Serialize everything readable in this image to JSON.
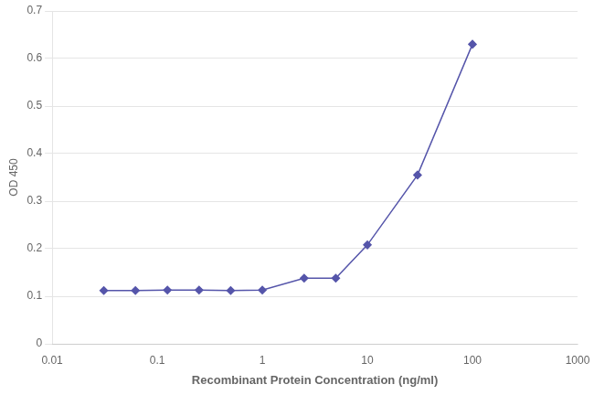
{
  "chart_data": {
    "type": "line",
    "x": [
      0.031,
      0.062,
      0.125,
      0.25,
      0.5,
      1.0,
      2.5,
      5.0,
      10.0,
      30.0,
      100.0
    ],
    "values": [
      0.112,
      0.112,
      0.113,
      0.113,
      0.112,
      0.113,
      0.138,
      0.138,
      0.208,
      0.355,
      0.63
    ],
    "color": "#5555aa",
    "marker": "diamond",
    "xlabel": "Recombinant Protein Concentration (ng/ml)",
    "ylabel": "OD 450",
    "log": "x",
    "xlim": [
      0.01,
      1000
    ],
    "xticks": [
      0.01,
      0.1,
      1,
      10,
      100,
      1000
    ],
    "ylim": [
      0,
      0.7
    ],
    "yticks": [
      0,
      0.1,
      0.2,
      0.3,
      0.4,
      0.5,
      0.6,
      0.7
    ],
    "grid": "y"
  }
}
